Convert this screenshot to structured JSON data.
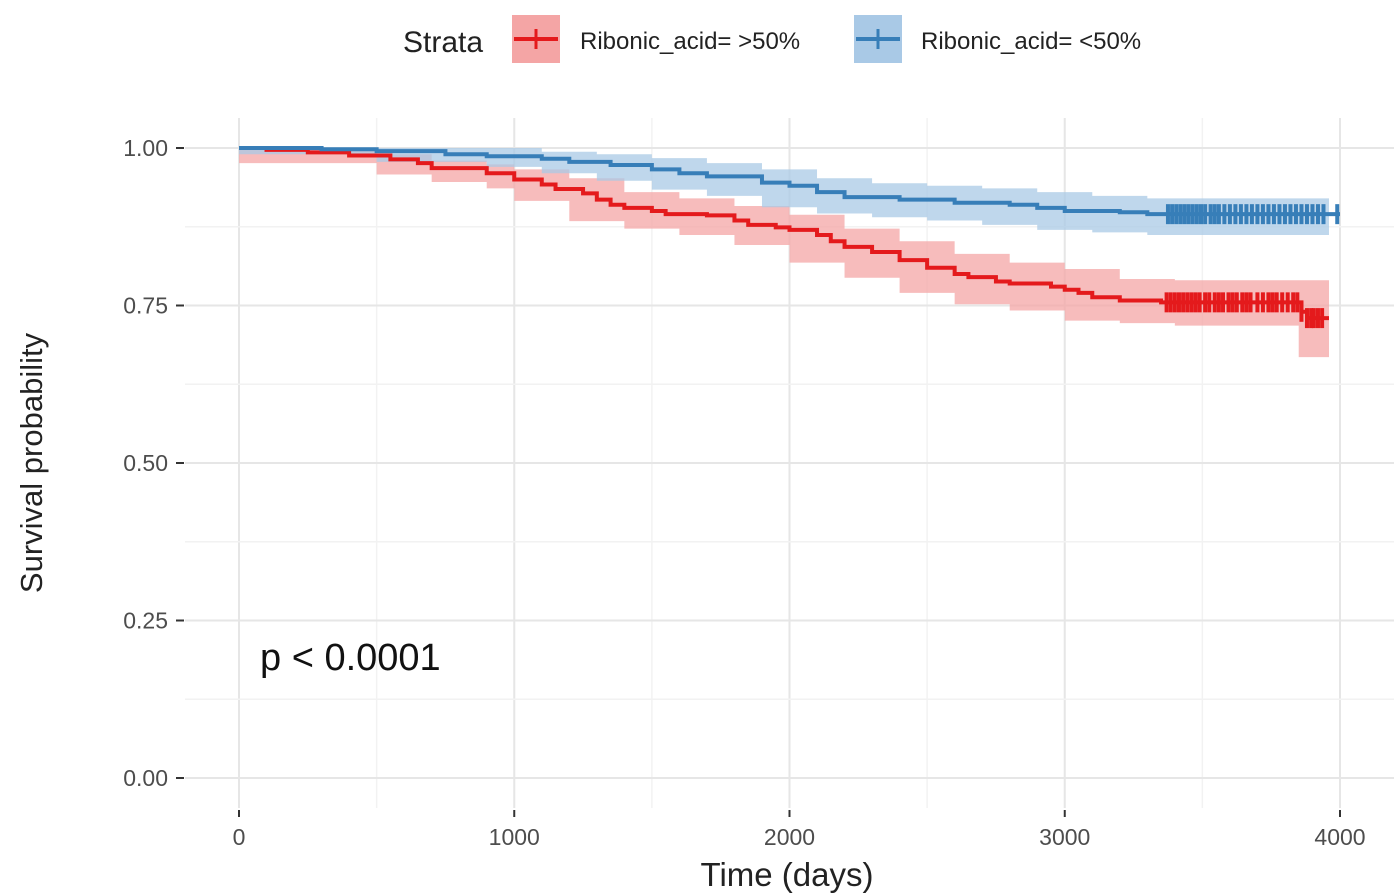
{
  "chart_data": {
    "type": "line",
    "subtype": "kaplan-meier",
    "title": "",
    "xlabel": "Time (days)",
    "ylabel": "Survival probability",
    "xlim": [
      0,
      4000
    ],
    "ylim": [
      0,
      1
    ],
    "x_ticks": [
      0,
      1000,
      2000,
      3000,
      4000
    ],
    "x_tick_labels": [
      "0",
      "1000",
      "2000",
      "3000",
      "4000"
    ],
    "y_ticks": [
      0,
      0.25,
      0.5,
      0.75,
      1
    ],
    "y_tick_labels": [
      "0.00",
      "0.25",
      "0.50",
      "0.75",
      "1.00"
    ],
    "grid": true,
    "legend": {
      "position": "top",
      "title": "Strata",
      "entries": [
        "Ribonic_acid= >50%",
        "Ribonic_acid= <50%"
      ]
    },
    "annotation": {
      "text": "p < 0.0001"
    },
    "series": [
      {
        "name": "Ribonic_acid= >50%",
        "color": "#e41a1c",
        "band_color": "#f4a5a5",
        "steps": [
          [
            0,
            1.0
          ],
          [
            100,
            0.997
          ],
          [
            250,
            0.993
          ],
          [
            400,
            0.988
          ],
          [
            550,
            0.982
          ],
          [
            650,
            0.976
          ],
          [
            700,
            0.968
          ],
          [
            900,
            0.96
          ],
          [
            1000,
            0.95
          ],
          [
            1100,
            0.942
          ],
          [
            1150,
            0.935
          ],
          [
            1250,
            0.928
          ],
          [
            1300,
            0.918
          ],
          [
            1350,
            0.91
          ],
          [
            1400,
            0.905
          ],
          [
            1500,
            0.9
          ],
          [
            1550,
            0.895
          ],
          [
            1700,
            0.893
          ],
          [
            1800,
            0.885
          ],
          [
            1850,
            0.878
          ],
          [
            1950,
            0.874
          ],
          [
            2000,
            0.87
          ],
          [
            2100,
            0.862
          ],
          [
            2150,
            0.852
          ],
          [
            2200,
            0.843
          ],
          [
            2300,
            0.835
          ],
          [
            2400,
            0.822
          ],
          [
            2500,
            0.81
          ],
          [
            2600,
            0.8
          ],
          [
            2650,
            0.795
          ],
          [
            2750,
            0.788
          ],
          [
            2800,
            0.785
          ],
          [
            2950,
            0.78
          ],
          [
            3000,
            0.775
          ],
          [
            3050,
            0.77
          ],
          [
            3100,
            0.763
          ],
          [
            3200,
            0.758
          ],
          [
            3350,
            0.755
          ],
          [
            3860,
            0.74
          ],
          [
            3880,
            0.73
          ],
          [
            3960,
            0.73
          ]
        ],
        "ci": [
          [
            0,
            1.0,
            1.0
          ],
          [
            500,
            0.99,
            0.976
          ],
          [
            700,
            0.98,
            0.958
          ],
          [
            900,
            0.974,
            0.946
          ],
          [
            1000,
            0.966,
            0.936
          ],
          [
            1200,
            0.952,
            0.916
          ],
          [
            1400,
            0.93,
            0.884
          ],
          [
            1600,
            0.92,
            0.872
          ],
          [
            1800,
            0.908,
            0.862
          ],
          [
            2000,
            0.894,
            0.846
          ],
          [
            2200,
            0.872,
            0.818
          ],
          [
            2400,
            0.852,
            0.794
          ],
          [
            2600,
            0.832,
            0.77
          ],
          [
            2800,
            0.818,
            0.752
          ],
          [
            3000,
            0.808,
            0.742
          ],
          [
            3200,
            0.792,
            0.726
          ],
          [
            3400,
            0.79,
            0.722
          ],
          [
            3850,
            0.79,
            0.718
          ],
          [
            3870,
            0.79,
            0.668
          ],
          [
            3960,
            0.79,
            0.668
          ]
        ],
        "censor_x": [
          3370,
          3385,
          3400,
          3415,
          3430,
          3445,
          3460,
          3475,
          3490,
          3510,
          3525,
          3545,
          3560,
          3575,
          3595,
          3610,
          3625,
          3645,
          3660,
          3675,
          3700,
          3720,
          3740,
          3755,
          3770,
          3790,
          3810,
          3830,
          3845,
          3860,
          3880,
          3895,
          3905,
          3920,
          3935
        ]
      },
      {
        "name": "Ribonic_acid= <50%",
        "color": "#377eb8",
        "band_color": "#a9c9e6",
        "steps": [
          [
            0,
            1.0
          ],
          [
            300,
            0.998
          ],
          [
            500,
            0.995
          ],
          [
            750,
            0.99
          ],
          [
            900,
            0.987
          ],
          [
            1100,
            0.983
          ],
          [
            1200,
            0.978
          ],
          [
            1350,
            0.973
          ],
          [
            1500,
            0.966
          ],
          [
            1600,
            0.96
          ],
          [
            1700,
            0.955
          ],
          [
            1900,
            0.945
          ],
          [
            2000,
            0.94
          ],
          [
            2100,
            0.93
          ],
          [
            2200,
            0.922
          ],
          [
            2400,
            0.918
          ],
          [
            2600,
            0.913
          ],
          [
            2800,
            0.91
          ],
          [
            2900,
            0.905
          ],
          [
            3000,
            0.9
          ],
          [
            3200,
            0.898
          ],
          [
            3300,
            0.895
          ],
          [
            4000,
            0.895
          ]
        ],
        "ci": [
          [
            0,
            1.0,
            1.0
          ],
          [
            500,
            1.0,
            0.99
          ],
          [
            900,
            1.0,
            0.978
          ],
          [
            1100,
            0.994,
            0.97
          ],
          [
            1300,
            0.99,
            0.96
          ],
          [
            1500,
            0.984,
            0.948
          ],
          [
            1700,
            0.976,
            0.934
          ],
          [
            1900,
            0.966,
            0.924
          ],
          [
            2100,
            0.952,
            0.906
          ],
          [
            2300,
            0.944,
            0.896
          ],
          [
            2500,
            0.94,
            0.89
          ],
          [
            2700,
            0.936,
            0.885
          ],
          [
            2900,
            0.93,
            0.878
          ],
          [
            3100,
            0.924,
            0.87
          ],
          [
            3300,
            0.92,
            0.866
          ],
          [
            3960,
            0.92,
            0.862
          ]
        ],
        "censor_x": [
          3375,
          3390,
          3405,
          3420,
          3435,
          3450,
          3465,
          3480,
          3495,
          3510,
          3530,
          3545,
          3560,
          3580,
          3600,
          3620,
          3640,
          3660,
          3680,
          3700,
          3720,
          3740,
          3760,
          3780,
          3800,
          3820,
          3840,
          3860,
          3880,
          3900,
          3920,
          3940,
          3990
        ]
      }
    ]
  }
}
